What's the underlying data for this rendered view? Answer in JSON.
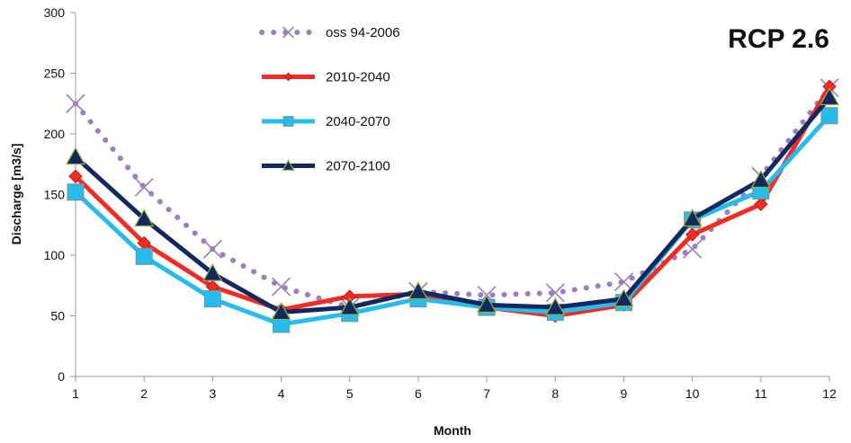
{
  "chart_data": {
    "type": "line",
    "title": "RCP 2.6",
    "xlabel": "Month",
    "ylabel": "Discharge [m3/s]",
    "x": [
      1,
      2,
      3,
      4,
      5,
      6,
      7,
      8,
      9,
      10,
      11,
      12
    ],
    "xlim": [
      1,
      12
    ],
    "ylim": [
      0,
      300
    ],
    "yticks": [
      0,
      50,
      100,
      150,
      200,
      250,
      300
    ],
    "grid": false,
    "legend_position": "top-center",
    "series": [
      {
        "name": "oss 94-2006",
        "color": "#9B7FBF",
        "line_style": "dotted",
        "marker": "x",
        "values": [
          225,
          156,
          105,
          74,
          57,
          70,
          67,
          69,
          78,
          105,
          165,
          238
        ]
      },
      {
        "name": "2010-2040",
        "color": "#F02C23",
        "line_style": "solid",
        "marker": "diamond",
        "values": [
          165,
          110,
          74,
          55,
          66,
          68,
          57,
          50,
          59,
          117,
          142,
          239
        ]
      },
      {
        "name": "2040-2070",
        "color": "#26BCEB",
        "line_style": "solid",
        "marker": "square",
        "values": [
          152,
          99,
          64,
          43,
          52,
          64,
          57,
          53,
          61,
          129,
          153,
          215
        ]
      },
      {
        "name": "2070-2100",
        "color": "#13285E",
        "line_style": "solid",
        "marker": "triangle",
        "values": [
          181,
          130,
          85,
          53,
          57,
          70,
          59,
          57,
          64,
          130,
          162,
          230
        ]
      }
    ]
  }
}
